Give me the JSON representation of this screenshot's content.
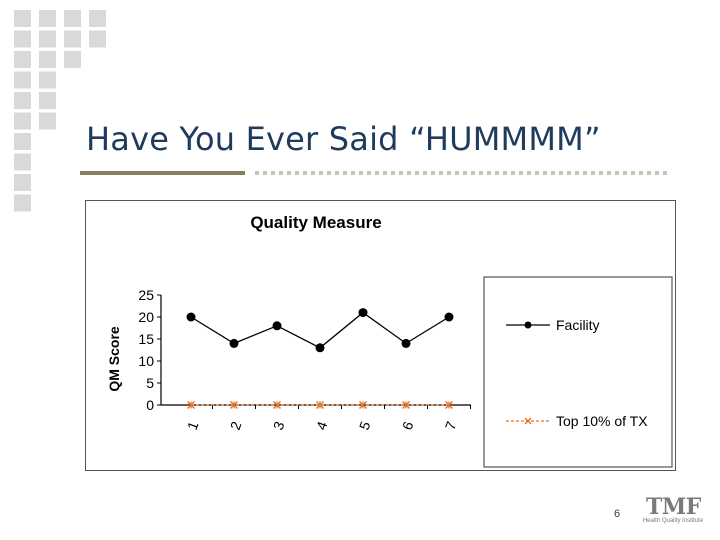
{
  "slide": {
    "title": "Have You Ever Said “HUMMMM”",
    "page_number": "6",
    "logo": {
      "main": "TMF",
      "sub": "Health Quality Institute"
    }
  },
  "colors": {
    "title": "#1f3b5c",
    "rule": "#8a7b62",
    "facility_series": "#000000",
    "benchmark_series": "#e8742a",
    "deco_squares": "#d9d9d9"
  },
  "chart_data": {
    "type": "line",
    "title": "Quality Measure",
    "xlabel": "",
    "ylabel": "QM Score",
    "categories": [
      "1",
      "2",
      "3",
      "4",
      "5",
      "6",
      "7"
    ],
    "ylim": [
      0,
      25
    ],
    "yticks": [
      0,
      5,
      10,
      15,
      20,
      25
    ],
    "grid": false,
    "legend_position": "right",
    "series": [
      {
        "name": "Facility",
        "values": [
          20,
          14,
          18,
          13,
          21,
          14,
          20
        ],
        "marker": "circle",
        "line": "solid"
      },
      {
        "name": "Top 10% of TX",
        "values": [
          0,
          0,
          0,
          0,
          0,
          0,
          0
        ],
        "marker": "x",
        "line": "dashed"
      }
    ]
  }
}
